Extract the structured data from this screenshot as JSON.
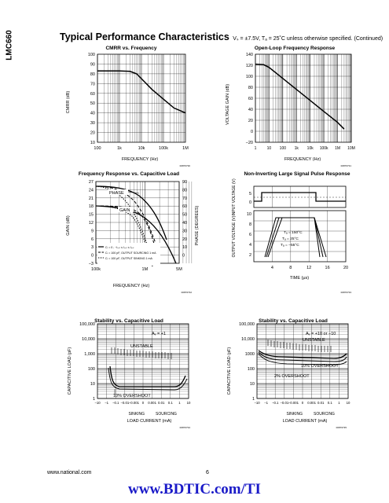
{
  "side_tab": "LMC660",
  "header": {
    "title": "Typical Performance Characteristics",
    "conditions": "Vₛ = ±7.5V, Tₐ = 25˚C unless otherwise specified. (Continued)"
  },
  "footer": {
    "site": "www.national.com",
    "page": "6"
  },
  "watermark": "www.BDTIC.com/TI",
  "chart_data": [
    {
      "type": "line",
      "title": "CMRR vs. Frequency",
      "xlabel": "FREQUENCY (Hz)",
      "ylabel": "CMRR (dB)",
      "xscale": "log",
      "xlim": [
        100,
        1000000
      ],
      "ylim": [
        10,
        100
      ],
      "x_ticks": [
        "100",
        "1k",
        "10k",
        "100k",
        "1M"
      ],
      "y_ticks": [
        "100",
        "90",
        "80",
        "70",
        "60",
        "50",
        "40",
        "30",
        "20",
        "10"
      ],
      "series": [
        {
          "x": [
            100,
            1000,
            3000,
            6000,
            10000,
            30000,
            100000,
            300000,
            1000000
          ],
          "y": [
            83,
            83,
            82.5,
            80,
            75,
            64,
            54,
            45,
            40
          ]
        }
      ],
      "figure_id": "00876730"
    },
    {
      "type": "line",
      "title": "Open-Loop Frequency Response",
      "xlabel": "FREQUENCY (Hz)",
      "ylabel": "VOLTAGE GAIN (dB)",
      "xscale": "log",
      "xlim": [
        1,
        10000000
      ],
      "ylim": [
        -20,
        140
      ],
      "x_ticks": [
        "1",
        "10",
        "100",
        "1k",
        "10k",
        "100k",
        "1M",
        "10M"
      ],
      "y_ticks": [
        "140",
        "120",
        "100",
        "80",
        "60",
        "40",
        "20",
        "0",
        "−20"
      ],
      "series": [
        {
          "x": [
            1,
            4,
            10,
            100,
            1000,
            10000,
            100000,
            1000000,
            3000000
          ],
          "y": [
            122,
            121,
            116,
            96,
            76,
            56,
            36,
            16,
            4
          ]
        }
      ],
      "figure_id": "00876731"
    },
    {
      "type": "line",
      "title": "Frequency Response vs. Capacitive Load",
      "xlabel": "FREQUENCY (Hz)",
      "ylabel": "GAIN (dB)",
      "y2label": "PHASE (DEGREES)",
      "xscale": "log",
      "xlim": [
        100000,
        5000000
      ],
      "ylim": [
        -3,
        27
      ],
      "y2lim": [
        -10,
        90
      ],
      "x_ticks": [
        "100k",
        "1M",
        "5M"
      ],
      "y_ticks": [
        "27",
        "24",
        "21",
        "18",
        "15",
        "12",
        "9",
        "6",
        "3",
        "0",
        "−3"
      ],
      "y2_ticks": [
        "90",
        "80",
        "70",
        "60",
        "50",
        "40",
        "30",
        "20",
        "10",
        "0"
      ],
      "annotations": [
        "PHASE",
        "GAIN"
      ],
      "legend": [
        "Cₗ = 0 ; −Iₒᵤₜ ≤ Iₒᵤₜ ≤ Iₒᵤₜ",
        "Cₗ = 100 pF, OUTPUT SOURCING 1 mA",
        "Cₗ = 100 pF, OUTPUT SINKING 1 mA"
      ],
      "figure_id": "00876732"
    },
    {
      "type": "line",
      "title": "Non-Inverting Large Signal Pulse Response",
      "xlabel": "TIME (μs)",
      "ylabel_top": "INPUT VOLTAGE (V)",
      "ylabel_bottom": "OUTPUT VOLTAGE (V)",
      "xlim": [
        0,
        20
      ],
      "x_ticks": [
        "4",
        "8",
        "12",
        "16",
        "20"
      ],
      "input_y_ticks": [
        "5",
        "0"
      ],
      "output_y_ticks": [
        "10",
        "8",
        "6",
        "4",
        "2"
      ],
      "annotations": [
        "Tₐ = 150°C",
        "Tₐ = 25°C",
        "Tₐ = −55°C"
      ],
      "figure_id": "00876733"
    },
    {
      "type": "line",
      "title": "Stability vs. Capacitive Load",
      "xlabel": "LOAD CURRENT (mA)",
      "ylabel": "CAPACITIVE LOAD (pF)",
      "yscale": "log",
      "ylim": [
        1,
        100000
      ],
      "y_ticks": [
        "100,000",
        "10,000",
        "1,000",
        "100",
        "10",
        "1"
      ],
      "x_ticks": [
        "−10",
        "−1",
        "−0.1",
        "−0.01",
        "−0.001",
        "0",
        "0.001",
        "0.01",
        "0.1",
        "1",
        "10"
      ],
      "x_groups": [
        "SINKING",
        "SOURCING"
      ],
      "annotations": [
        "Aᵥ = +1",
        "UNSTABLE",
        "10% OVERSHOOT"
      ],
      "figure_id": "00876734"
    },
    {
      "type": "line",
      "title": "Stability vs. Capacitive Load",
      "xlabel": "LOAD CURRENT (mA)",
      "ylabel": "CAPACITIVE LOAD (pF)",
      "yscale": "log",
      "ylim": [
        1,
        100000
      ],
      "y_ticks": [
        "100,000",
        "10,000",
        "1000",
        "100",
        "10",
        "1"
      ],
      "x_ticks": [
        "−10",
        "−1",
        "−0.1",
        "−0.01",
        "−0.001",
        "0",
        "0.001",
        "0.01",
        "0.1",
        "1",
        "10"
      ],
      "x_groups": [
        "SINKING",
        "SOURCING"
      ],
      "annotations": [
        "Aᵥ = +10 or −10",
        "UNSTABLE",
        "10% OVERSHOOT",
        "2% OVERSHOOT"
      ],
      "figure_id": "00876735"
    }
  ]
}
